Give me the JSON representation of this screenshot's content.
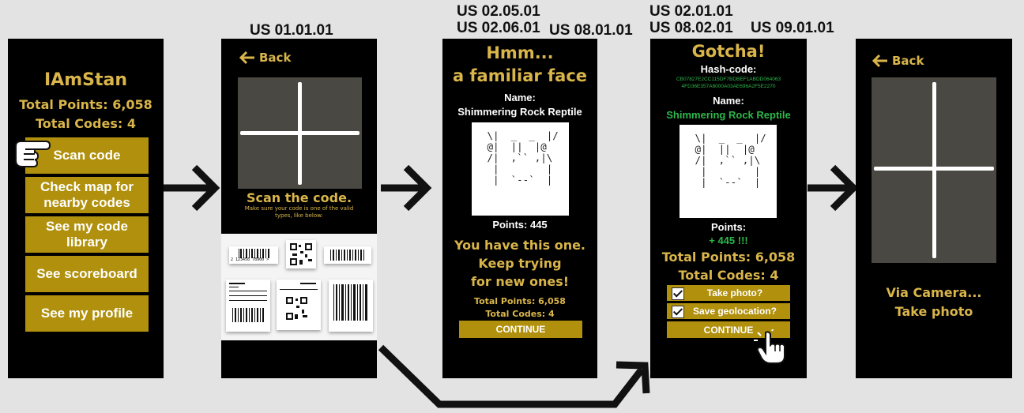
{
  "story_tags": {
    "screen2": "US 01.01.01",
    "screen3_a": "US 02.05.01",
    "screen3_b": "US 02.06.01",
    "screen3_c": "US 08.01.01",
    "screen4_a": "US 02.01.01",
    "screen4_b": "US 08.02.01",
    "screen4_c": "US 09.01.01"
  },
  "home": {
    "username": "IAmStan",
    "total_points": "Total Points: 6,058",
    "total_codes": "Total Codes: 4",
    "buttons": [
      "Scan code",
      "Check map for nearby codes",
      "See my code library",
      "See scoreboard",
      "See my profile"
    ]
  },
  "scan": {
    "back": "Back",
    "title": "Scan the code.",
    "hint": "Make sure your code is one of the valid types, like below:",
    "barcode_number": "2 123456 78900 >"
  },
  "familiar": {
    "title_line1": "Hmm...",
    "title_line2": "a familiar face",
    "name_label": "Name:",
    "name": "Shimmering Rock Reptile",
    "ascii": " \\|  _  _  |/\n @|  ||  |@\n /|  ,`` ,|\\\n  |        |\n  |  `--`  |",
    "points": "Points: 445",
    "message_l1": "You have this one.",
    "message_l2": "Keep trying",
    "message_l3": "for new ones!",
    "total_points": "Total Points: 6,058",
    "total_codes": "Total Codes: 4",
    "continue": "CONTINUE"
  },
  "gotcha": {
    "title": "Gotcha!",
    "hash_label": "Hash-code:",
    "hash_l1": "CB07827E2CC115DF7BDBEF1ABDD064063",
    "hash_l2": "4FD36E357A6000A03AE696A2F5E2270",
    "name_label": "Name:",
    "name": "Shimmering Rock Reptile",
    "ascii": " \\|  _  _  |/\n @|  ||  |@\n /|  ,`` ,|\\\n  |        |\n  |  `--`  |",
    "points_label": "Points:",
    "points_gain": "+ 445 !!!",
    "total_points": "Total Points: 6,058",
    "total_codes": "Total Codes: 4",
    "take_photo": "Take photo?",
    "save_geo": "Save geolocation?",
    "continue": "CONTINUE"
  },
  "camera": {
    "back": "Back",
    "line1": "Via Camera...",
    "line2": "Take photo"
  },
  "colors": {
    "gold_text": "#d9b54a",
    "button": "#b0900c",
    "green": "#2db84a",
    "screen_bg": "#000000",
    "camera_bg": "#4a4842"
  }
}
